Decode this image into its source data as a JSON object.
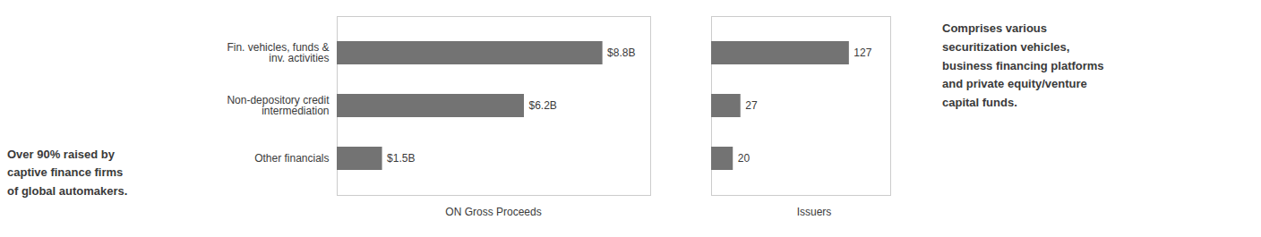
{
  "chart_data": [
    {
      "type": "bar",
      "orientation": "horizontal",
      "categories": [
        "Fin. vehicles, funds &\ninv. activities",
        "Non-depository credit\nintermediation",
        "Other financials"
      ],
      "values": [
        8.8,
        6.2,
        1.5
      ],
      "value_labels": [
        "$8.8B",
        "$6.2B",
        "$1.5B"
      ],
      "data_labels": true,
      "color": "#737373",
      "xlabel": "ON Gross Proceeds",
      "xlim": [
        0,
        10.384
      ],
      "tick_labels": "y",
      "grid": false,
      "annotations": [
        "Over 90% raised by\ncaptive finance firms\nof global automakers."
      ]
    },
    {
      "type": "bar",
      "orientation": "horizontal",
      "categories": [
        "Fin. vehicles, funds &\ninv. activities",
        "Non-depository credit\nintermediation",
        "Other financials"
      ],
      "values": [
        127,
        27,
        20
      ],
      "value_labels": [
        "127",
        "27",
        "20"
      ],
      "data_labels": true,
      "color": "#737373",
      "xlabel": "Issuers",
      "xlim": [
        0,
        165.1
      ],
      "tick_labels": false,
      "grid": false,
      "annotations": [
        "Comprises various\nsecuritization vehicles,\nbusiness financing platforms\nand private equity/venture\ncapital funds."
      ]
    }
  ]
}
